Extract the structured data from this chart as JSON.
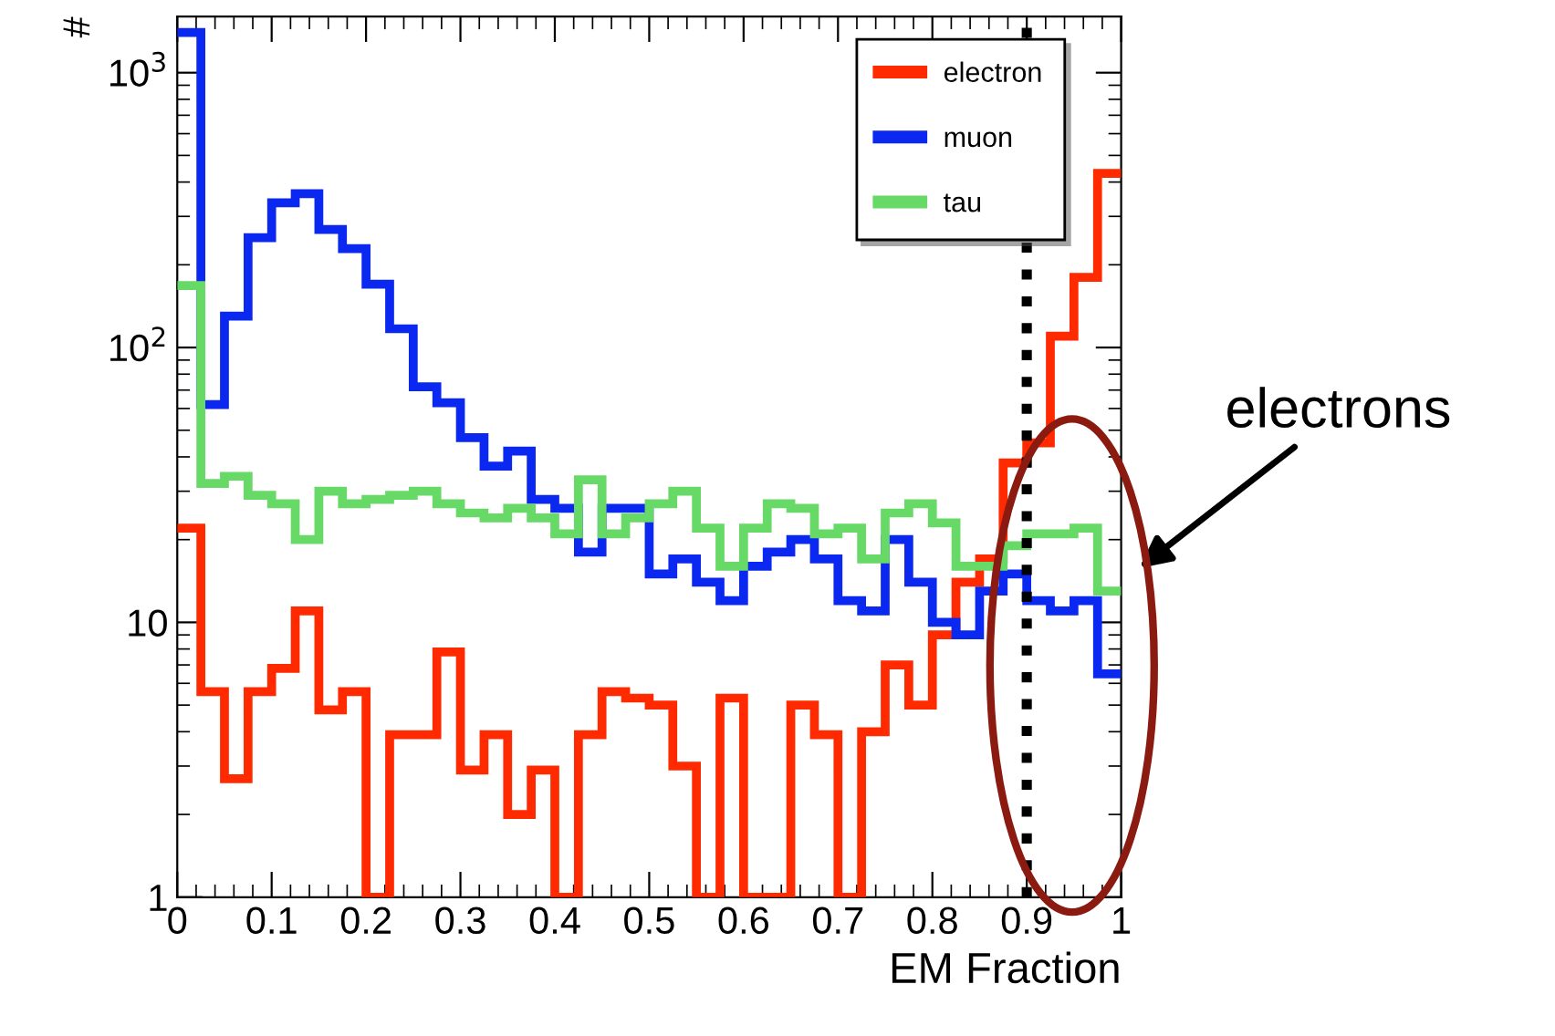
{
  "chart_data": {
    "type": "histogram",
    "xlabel": "EM Fraction",
    "ylabel": "#",
    "bins": [
      0,
      0.025,
      0.05,
      0.075,
      0.1,
      0.125,
      0.15,
      0.175,
      0.2,
      0.225,
      0.25,
      0.275,
      0.3,
      0.325,
      0.35,
      0.375,
      0.4,
      0.425,
      0.45,
      0.475,
      0.5,
      0.525,
      0.55,
      0.575,
      0.6,
      0.625,
      0.65,
      0.675,
      0.7,
      0.725,
      0.75,
      0.775,
      0.8,
      0.825,
      0.85,
      0.875,
      0.9,
      0.925,
      0.95,
      0.975,
      1
    ],
    "series": [
      {
        "name": "electron",
        "color": "#ff2a00",
        "values": [
          22,
          5.6,
          2.7,
          5.6,
          6.8,
          11,
          4.8,
          5.6,
          null,
          3.9,
          3.9,
          7.8,
          2.9,
          3.9,
          2,
          2.9,
          null,
          3.9,
          5.6,
          5.3,
          5,
          3,
          null,
          5.3,
          null,
          null,
          5,
          3.9,
          null,
          4,
          7,
          5,
          9,
          14,
          17,
          38,
          45,
          110,
          180,
          430
        ]
      },
      {
        "name": "muon",
        "color": "#0a28f0",
        "values": [
          1400,
          62,
          130,
          251,
          336,
          363,
          269,
          229,
          170,
          117,
          72,
          63,
          47,
          37,
          42,
          28,
          26,
          18,
          26,
          26,
          15,
          17,
          14,
          12,
          16,
          18,
          20,
          17,
          12,
          11,
          20,
          14,
          10,
          9,
          13,
          15,
          12,
          11,
          12,
          6.5
        ]
      },
      {
        "name": "tau",
        "color": "#66d966",
        "values": [
          168,
          32,
          34,
          29,
          27,
          20,
          30,
          27,
          28,
          29,
          30,
          27,
          25,
          24,
          26,
          24,
          21,
          33,
          21,
          24,
          27,
          30,
          22,
          16,
          22,
          27,
          26,
          21,
          22,
          17,
          25,
          27,
          23,
          16,
          16,
          19,
          21,
          21,
          22,
          13
        ]
      }
    ],
    "log": "y",
    "xlim": [
      0,
      1
    ],
    "ylim": [
      1,
      1600
    ],
    "xticks": [
      0,
      0.1,
      0.2,
      0.3,
      0.4,
      0.5,
      0.6,
      0.7,
      0.8,
      0.9,
      1
    ],
    "yticks": [
      1,
      10,
      {
        "value": 100,
        "label": "10$^{2}$"
      },
      {
        "value": 1000,
        "label": "10$^{3}$"
      }
    ],
    "ref_lines": [
      {
        "axis": "x",
        "value": 0.9,
        "color": "#000000",
        "line_style": "dotted"
      }
    ],
    "annotations": [
      "electrons"
    ],
    "grid": false,
    "legend": "top right"
  }
}
